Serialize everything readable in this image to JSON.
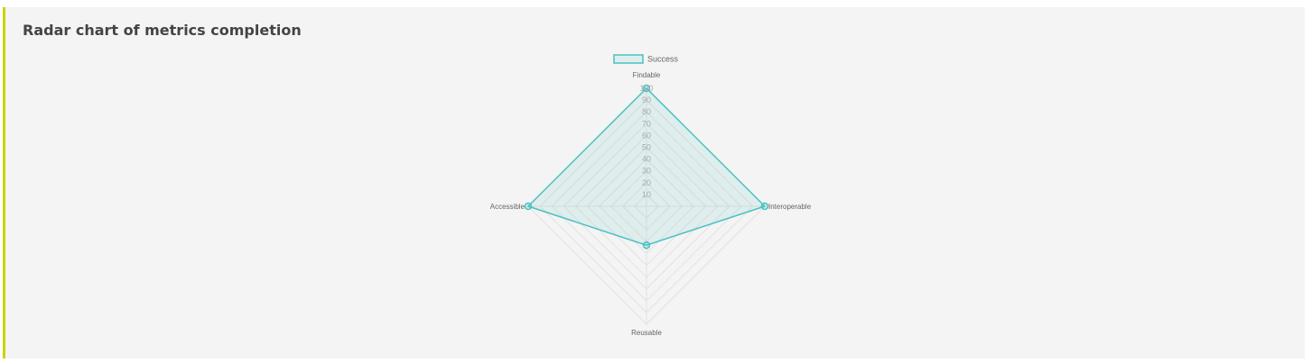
{
  "card": {
    "title": "Radar chart of metrics completion"
  },
  "chart_data": {
    "type": "radar",
    "axes": [
      "Findable",
      "Interoperable",
      "Reusable",
      "Accessible"
    ],
    "series": [
      {
        "name": "Success",
        "values": [
          100,
          100,
          33,
          100
        ]
      }
    ],
    "rlim": [
      0,
      100
    ],
    "ticks": [
      10,
      20,
      30,
      40,
      50,
      60,
      70,
      80,
      90,
      100
    ],
    "grid": true,
    "legend": "top",
    "colors": {
      "line": "#4bc0c0",
      "fill": "rgba(75,192,192,0.12)",
      "grid": "#e2e2e2",
      "tick": "#aaaaaa",
      "label": "#666666"
    }
  }
}
